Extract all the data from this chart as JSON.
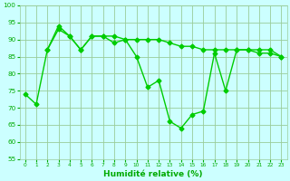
{
  "line1_x": [
    0,
    1,
    2,
    3,
    4,
    5,
    6,
    7,
    8,
    9,
    10,
    11,
    12,
    13,
    14,
    15,
    16,
    17,
    18,
    19,
    20,
    21,
    22,
    23
  ],
  "line1_y": [
    74,
    71,
    87,
    94,
    91,
    87,
    91,
    91,
    89,
    90,
    85,
    76,
    78,
    66,
    64,
    68,
    69,
    86,
    75,
    87,
    87,
    86,
    86,
    85
  ],
  "line2_x": [
    2,
    3,
    4,
    5,
    6,
    7,
    8,
    9,
    10,
    11,
    12,
    13,
    14,
    15,
    16,
    17,
    18,
    19,
    20,
    21,
    22,
    23
  ],
  "line2_y": [
    87,
    93,
    91,
    87,
    91,
    91,
    91,
    90,
    90,
    90,
    90,
    89,
    88,
    88,
    87,
    87,
    87,
    87,
    87,
    87,
    87,
    85
  ],
  "line_color": "#00cc00",
  "bg_color": "#ccffff",
  "grid_color": "#99cc99",
  "xlabel": "Humidité relative (%)",
  "xlabel_color": "#00aa00",
  "tick_color": "#00aa00",
  "ylim": [
    55,
    100
  ],
  "xlim": [
    -0.5,
    23.5
  ],
  "yticks": [
    55,
    60,
    65,
    70,
    75,
    80,
    85,
    90,
    95,
    100
  ],
  "xticks": [
    0,
    1,
    2,
    3,
    4,
    5,
    6,
    7,
    8,
    9,
    10,
    11,
    12,
    13,
    14,
    15,
    16,
    17,
    18,
    19,
    20,
    21,
    22,
    23
  ],
  "marker": "D",
  "markersize": 2.5,
  "linewidth": 1.0,
  "xlabel_fontsize": 6.5,
  "xlabel_fontweight": "bold",
  "xtick_fontsize": 4.2,
  "ytick_fontsize": 5.2
}
